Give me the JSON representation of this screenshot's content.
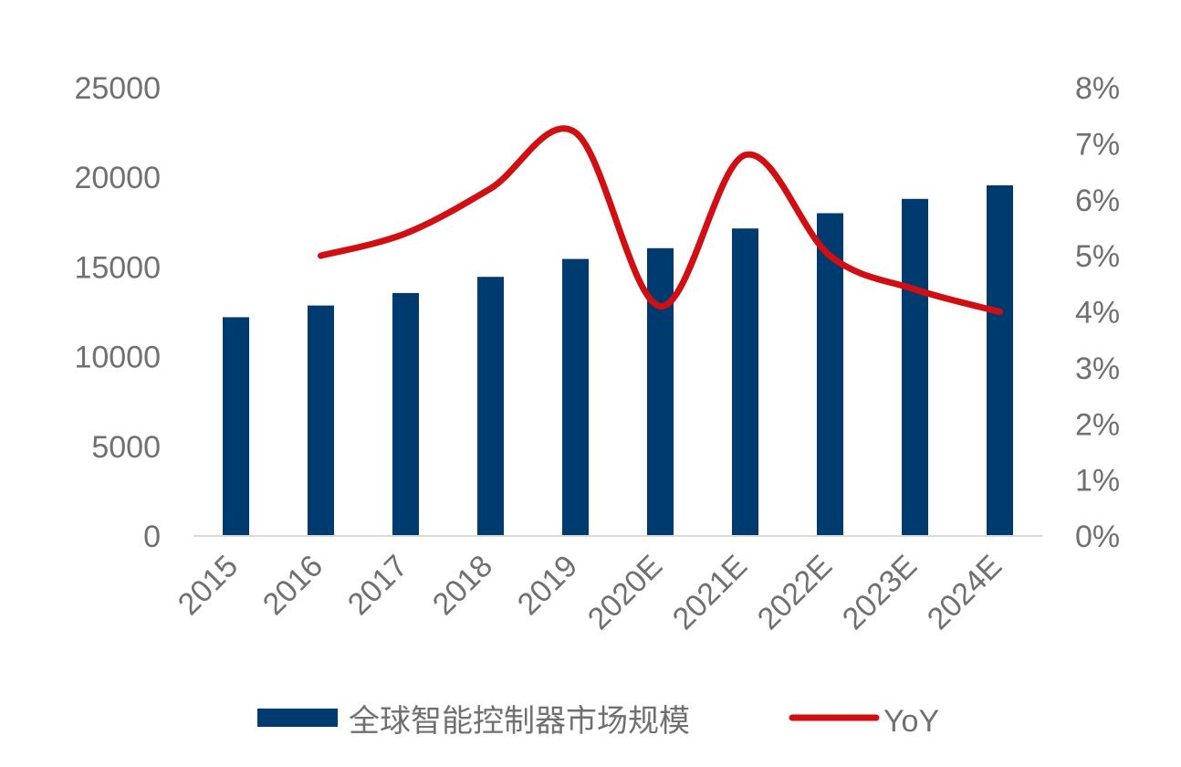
{
  "chart_data": {
    "type": "bar+line",
    "categories": [
      "2015",
      "2016",
      "2017",
      "2018",
      "2019",
      "2020E",
      "2021E",
      "2022E",
      "2023E",
      "2024E"
    ],
    "series": [
      {
        "name": "全球智能控制器市场规模",
        "type": "bar",
        "axis": "left",
        "color": "#003b70",
        "values": [
          12200,
          12850,
          13550,
          14450,
          15450,
          16050,
          17150,
          18000,
          18800,
          19550
        ]
      },
      {
        "name": "YoY",
        "type": "line",
        "axis": "right",
        "color": "#d10f12",
        "values": [
          null,
          5.0,
          5.4,
          6.2,
          7.2,
          4.1,
          6.8,
          5.0,
          4.4,
          4.0
        ]
      }
    ],
    "y_left": {
      "ylim": [
        0,
        25000
      ],
      "ticks": [
        "0",
        "5000",
        "10000",
        "15000",
        "20000",
        "25000"
      ]
    },
    "y_right": {
      "ylim": [
        0,
        8
      ],
      "unit": "%",
      "ticks": [
        "0%",
        "1%",
        "2%",
        "3%",
        "4%",
        "5%",
        "6%",
        "7%",
        "8%"
      ]
    },
    "grid": false,
    "legend": "bottom"
  }
}
